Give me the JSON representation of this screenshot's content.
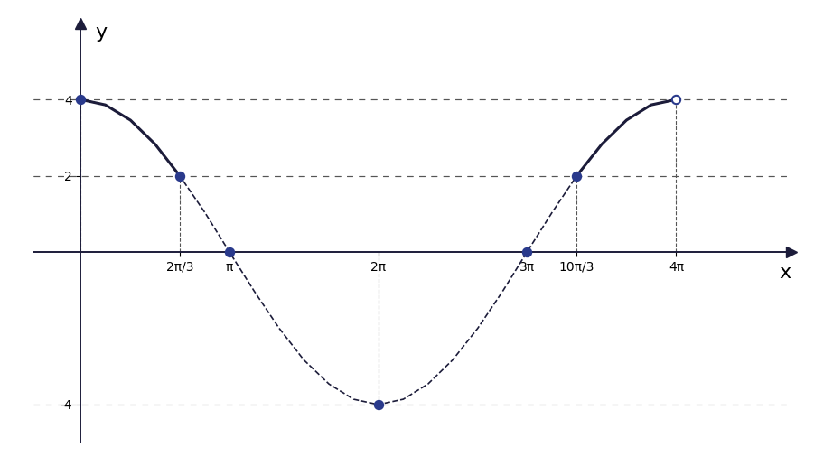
{
  "chart_data": {
    "type": "line",
    "x_label": "x",
    "y_label": "y",
    "xlim": [
      -1,
      15
    ],
    "ylim": [
      -5,
      6
    ],
    "xticks": [
      {
        "value": 2.09,
        "label": "2π/3"
      },
      {
        "value": 3.14,
        "label": "π"
      },
      {
        "value": 6.28,
        "label": "2π"
      },
      {
        "value": 9.42,
        "label": "3π"
      },
      {
        "value": 10.47,
        "label": "10π/3"
      },
      {
        "value": 12.57,
        "label": "4π"
      }
    ],
    "yticks": [
      -4,
      2,
      4
    ],
    "grid": false,
    "series": [
      {
        "type": "line",
        "line_style": "dashed",
        "color": "#1c1c3a",
        "x": [
          0,
          0.52,
          1.05,
          1.57,
          2.09,
          2.62,
          3.14,
          3.67,
          4.19,
          4.71,
          5.24,
          5.76,
          6.28,
          6.81,
          7.33,
          7.85,
          8.38,
          8.9,
          9.42,
          9.95,
          10.47,
          11.0,
          11.52,
          12.04,
          12.57
        ],
        "values": [
          4,
          3.86,
          3.46,
          2.83,
          2,
          1.04,
          0,
          -1.04,
          -2,
          -2.83,
          -3.46,
          -3.86,
          -4,
          -3.86,
          -3.46,
          -2.83,
          -2,
          -1.04,
          0,
          1.04,
          2,
          2.83,
          3.46,
          3.86,
          4
        ]
      },
      {
        "type": "line",
        "line_style": "solid",
        "color": "#1c1c3a",
        "x": [
          0,
          0.52,
          1.05,
          1.57,
          2.09
        ],
        "values": [
          4,
          3.86,
          3.46,
          2.83,
          2
        ]
      },
      {
        "type": "line",
        "line_style": "solid",
        "color": "#1c1c3a",
        "x": [
          10.47,
          11.0,
          11.52,
          12.04,
          12.57
        ],
        "values": [
          2,
          2.83,
          3.46,
          3.86,
          4
        ]
      },
      {
        "type": "scatter",
        "marker": "filled",
        "color": "#2a3a8c",
        "x": [
          0,
          2.09,
          3.14,
          6.28,
          9.42,
          10.47
        ],
        "values": [
          4,
          2,
          0,
          -4,
          0,
          2
        ]
      },
      {
        "type": "scatter",
        "marker": "open",
        "color": "#2a3a8c",
        "x": [
          12.57
        ],
        "values": [
          4
        ]
      }
    ]
  }
}
